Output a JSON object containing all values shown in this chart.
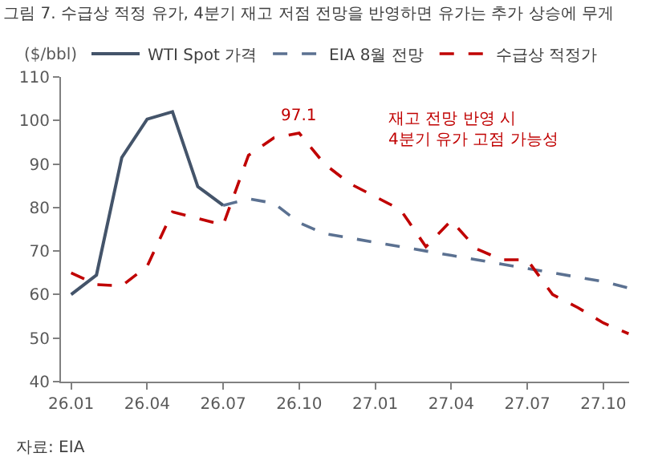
{
  "chart_data": {
    "type": "line",
    "title": "그림 7. 수급상 적정 유가, 4분기 재고 저점 전망을 반영하면 유가는 추가 상승에 무게",
    "ylabel": "($/bbl)",
    "categories": [
      "26.01",
      null,
      null,
      "26.04",
      null,
      null,
      "26.07",
      null,
      null,
      "26.10",
      null,
      null,
      "27.01",
      null,
      null,
      "27.04",
      null,
      null,
      "27.07",
      null,
      null,
      "27.10",
      null
    ],
    "series": [
      {
        "name": "WTI Spot 가격",
        "color": "#44546a",
        "line_style": "solid",
        "values": [
          60,
          64.5,
          91.5,
          100.3,
          102,
          84.8,
          80.5,
          null,
          null,
          null,
          null,
          null,
          null,
          null,
          null,
          null,
          null,
          null,
          null,
          null,
          null,
          null,
          null
        ]
      },
      {
        "name": "EIA 8월 전망",
        "color": "#5b7191",
        "line_style": "dashed",
        "values": [
          null,
          null,
          null,
          null,
          null,
          null,
          80.5,
          82,
          81,
          76.5,
          74,
          73,
          72,
          71,
          70,
          69,
          68,
          67,
          66,
          65,
          64,
          63,
          61.5
        ]
      },
      {
        "name": "수급상 적정가",
        "color": "#c00000",
        "line_style": "dashed",
        "values": [
          65,
          62.3,
          62,
          66.5,
          79,
          77.5,
          76,
          92,
          96,
          97.1,
          90,
          85.5,
          82.5,
          79.5,
          71,
          77,
          70.5,
          68,
          68,
          60,
          57,
          53.5,
          51
        ]
      }
    ],
    "ylim": [
      40,
      110
    ],
    "yticks": [
      40,
      50,
      60,
      70,
      80,
      90,
      100,
      110
    ],
    "annotations": [
      {
        "text": "97.1",
        "x": "26.10",
        "y": 97.1
      },
      "재고 전망 반영 시\n4분기 유가 고점 가능성",
      "자료: EIA"
    ],
    "legend": "top",
    "grid": false,
    "marker": "none"
  }
}
